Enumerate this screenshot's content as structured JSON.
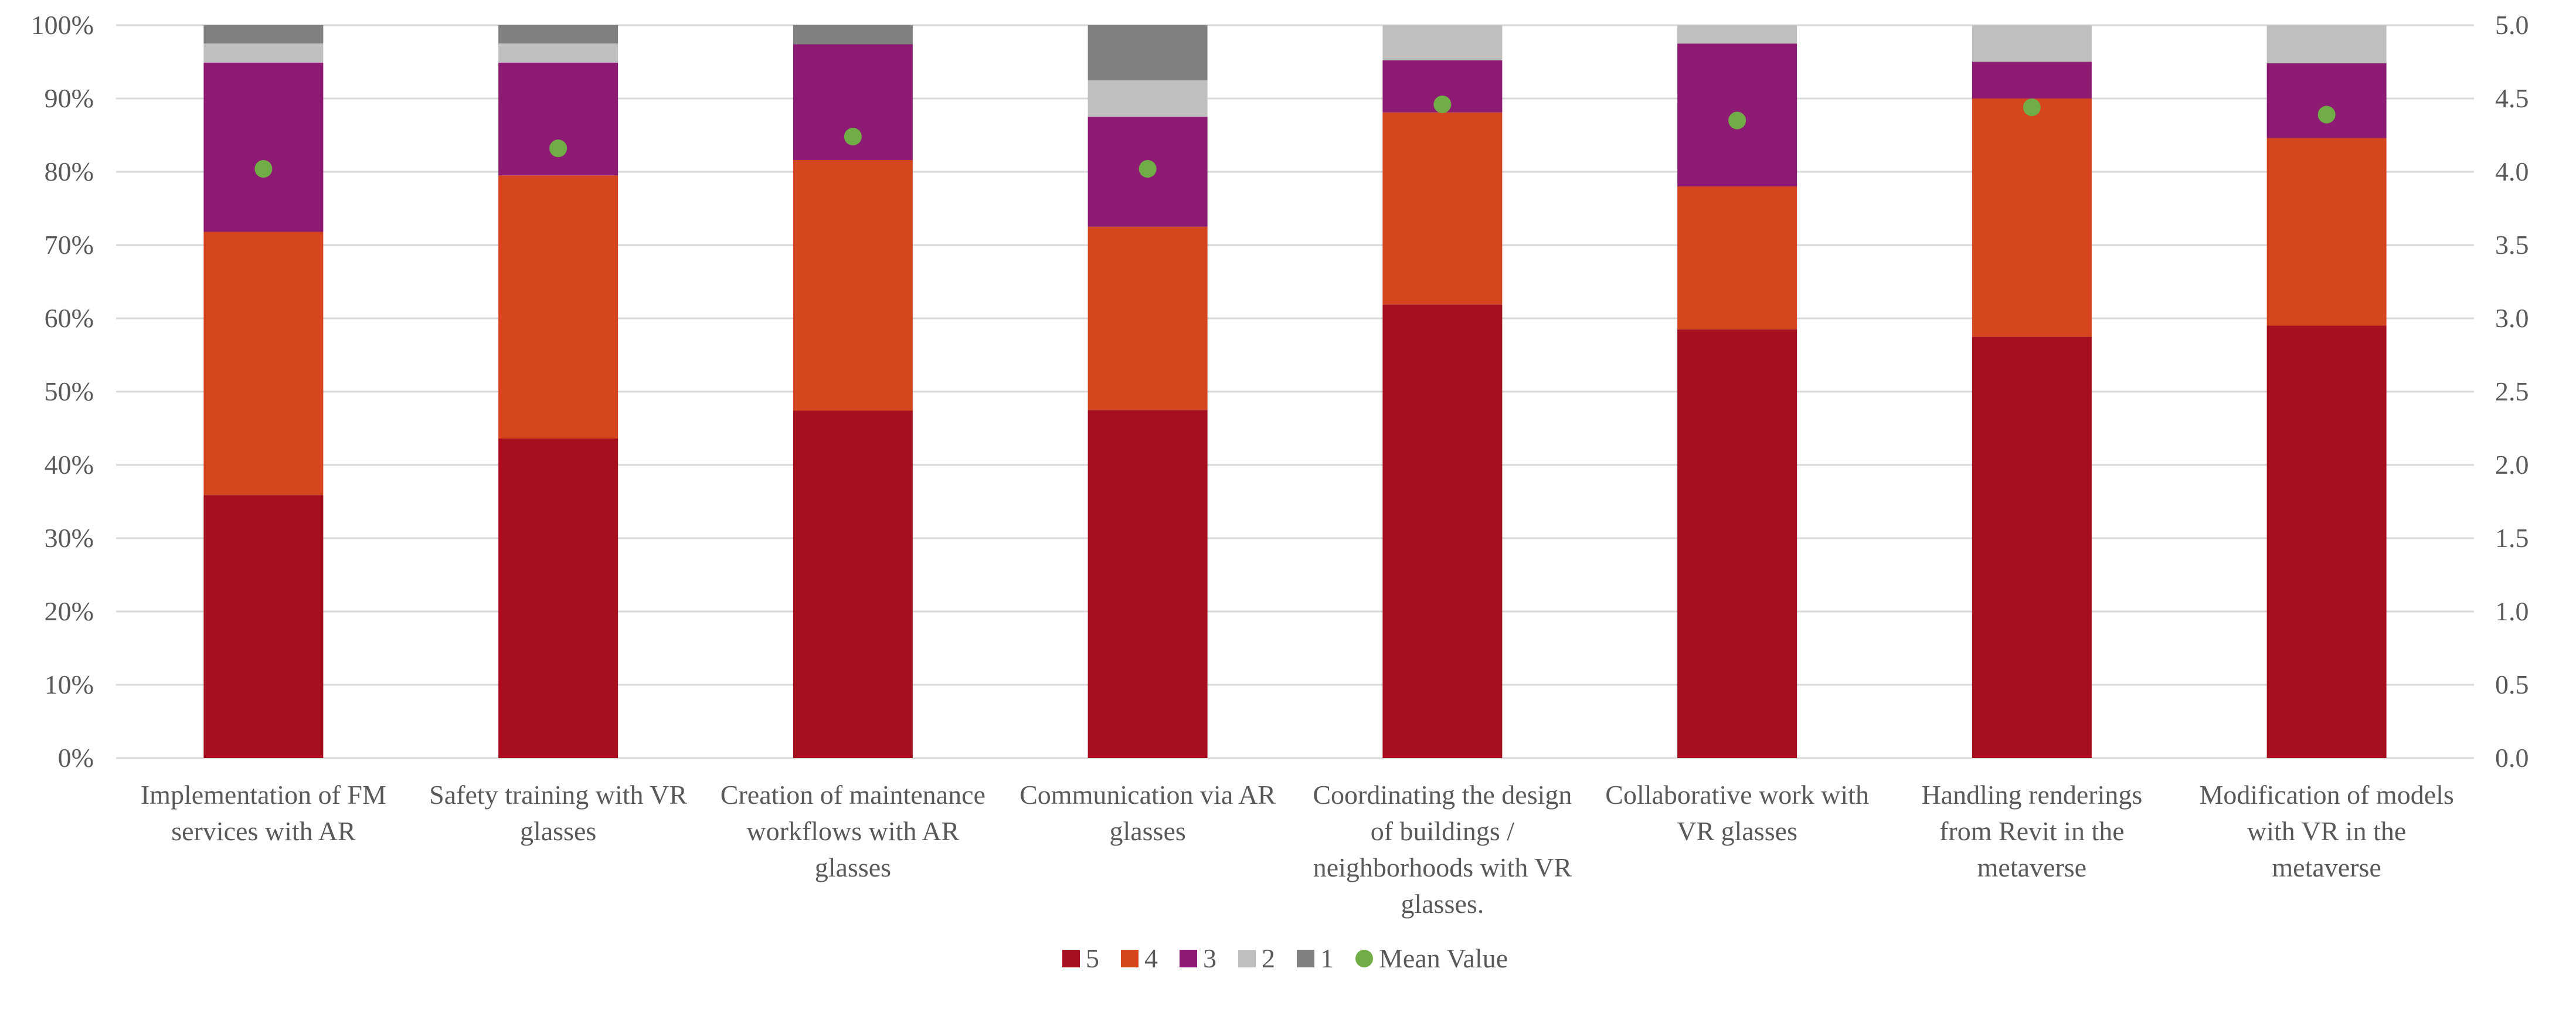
{
  "chart_data": {
    "type": "bar",
    "stacked": true,
    "normalized_percent": true,
    "categories": [
      [
        "Implementation of FM",
        "services with AR"
      ],
      [
        "Safety training with VR",
        "glasses"
      ],
      [
        "Creation of maintenance",
        "workflows with AR",
        "glasses"
      ],
      [
        "Communication via AR",
        "glasses"
      ],
      [
        "Coordinating the design",
        "of buildings /",
        "neighborhoods with VR",
        "glasses."
      ],
      [
        "Collaborative work with",
        "VR glasses"
      ],
      [
        "Handling renderings",
        "from Revit in the",
        "metaverse"
      ],
      [
        "Modification of models",
        "with VR in the",
        "metaverse"
      ]
    ],
    "series": [
      {
        "name": "5",
        "color": "#A50F1E",
        "values": [
          35.9,
          43.6,
          47.4,
          47.5,
          61.9,
          58.5,
          57.5,
          59.0
        ]
      },
      {
        "name": "4",
        "color": "#D6461E",
        "values": [
          35.9,
          35.9,
          34.2,
          25.0,
          26.2,
          19.5,
          32.5,
          25.6
        ]
      },
      {
        "name": "3",
        "color": "#8E1B73",
        "values": [
          23.1,
          15.4,
          15.8,
          15.0,
          7.1,
          19.5,
          5.0,
          10.2
        ]
      },
      {
        "name": "2",
        "color": "#BFBFBF",
        "values": [
          2.6,
          2.6,
          0.0,
          5.0,
          4.8,
          2.5,
          5.0,
          5.2
        ]
      },
      {
        "name": "1",
        "color": "#808080",
        "values": [
          2.5,
          2.5,
          2.6,
          7.5,
          0.0,
          0.0,
          0.0,
          0.0
        ]
      }
    ],
    "mean_series": {
      "name": "Mean Value",
      "color": "#70AD47",
      "values": [
        4.02,
        4.16,
        4.24,
        4.02,
        4.46,
        4.35,
        4.44,
        4.39
      ]
    },
    "y_left": {
      "min": 0,
      "max": 100,
      "step": 10,
      "format": "percent"
    },
    "y_right": {
      "min": 0,
      "max": 5,
      "step": 0.5,
      "format": "one-decimal"
    },
    "legend": {
      "placement": "bottom-center",
      "entries": [
        "5",
        "4",
        "3",
        "2",
        "1",
        "Mean Value"
      ]
    },
    "grid": true
  }
}
